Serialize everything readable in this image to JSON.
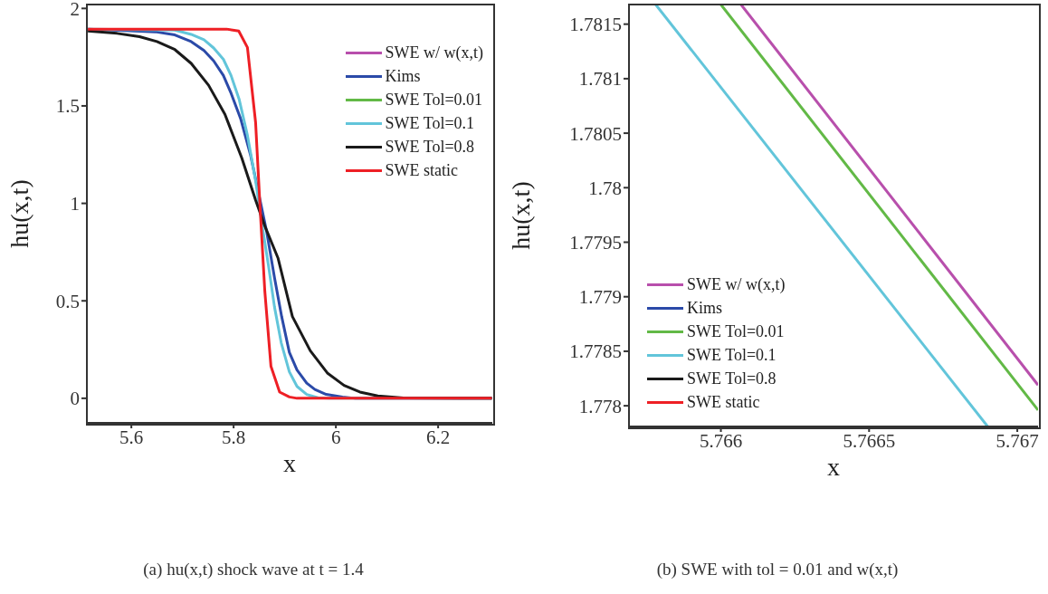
{
  "chart_data": [
    {
      "type": "line",
      "xlabel": "x",
      "ylabel": "hu(x,t)",
      "xlim": [
        5.513,
        6.306
      ],
      "ylim": [
        -0.126,
        2.02
      ],
      "xticks": [
        5.6,
        5.8,
        6,
        6.2
      ],
      "yticks": [
        0,
        0.5,
        1,
        1.5,
        2
      ],
      "grid": false,
      "legend": "top right",
      "marker": "none",
      "line_style": "solid",
      "annotations": [
        "(a) hu(x,t) shock wave at t = 1.4"
      ],
      "series": [
        {
          "name": "SWE w/ w(x,t)",
          "color": "#b84fac"
        },
        {
          "name": "Kims",
          "color": "#2b4aa8",
          "x": [
            5.515,
            5.647,
            5.685,
            5.717,
            5.742,
            5.761,
            5.78,
            5.795,
            5.814,
            5.833,
            5.849,
            5.865,
            5.88,
            5.894,
            5.909,
            5.924,
            5.943,
            5.959,
            5.981,
            6.013,
            6.038,
            6.305
          ],
          "values": [
            1.894,
            1.88,
            1.864,
            1.83,
            1.784,
            1.731,
            1.656,
            1.565,
            1.432,
            1.249,
            1.05,
            0.85,
            0.618,
            0.419,
            0.236,
            0.145,
            0.078,
            0.045,
            0.02,
            0.007,
            0,
            0
          ]
        },
        {
          "name": "SWE Tol=0.01",
          "color": "#62b946"
        },
        {
          "name": "SWE Tol=0.1",
          "color": "#62c5da",
          "x": [
            5.515,
            5.685,
            5.717,
            5.742,
            5.761,
            5.78,
            5.795,
            5.811,
            5.827,
            5.843,
            5.855,
            5.868,
            5.88,
            5.893,
            5.909,
            5.924,
            5.943,
            5.965,
            5.987,
            6.305
          ],
          "values": [
            1.894,
            1.889,
            1.867,
            1.839,
            1.797,
            1.739,
            1.656,
            1.532,
            1.349,
            1.116,
            0.9,
            0.684,
            0.468,
            0.286,
            0.136,
            0.061,
            0.02,
            0.003,
            0,
            0
          ]
        },
        {
          "name": "SWE Tol=0.8",
          "color": "#1a1a1a",
          "x": [
            5.515,
            5.572,
            5.616,
            5.65,
            5.685,
            5.717,
            5.751,
            5.783,
            5.816,
            5.843,
            5.861,
            5.887,
            5.915,
            5.95,
            5.984,
            6.016,
            6.047,
            6.082,
            6.132,
            6.305
          ],
          "values": [
            1.884,
            1.872,
            1.855,
            1.83,
            1.789,
            1.718,
            1.606,
            1.457,
            1.233,
            1.017,
            0.884,
            0.718,
            0.419,
            0.244,
            0.128,
            0.066,
            0.032,
            0.012,
            0.002,
            0
          ]
        },
        {
          "name": "SWE static",
          "color": "#ee1f25",
          "x": [
            5.515,
            5.786,
            5.81,
            5.827,
            5.843,
            5.852,
            5.861,
            5.873,
            5.89,
            5.909,
            5.924,
            6.305
          ],
          "values": [
            1.894,
            1.894,
            1.884,
            1.8,
            1.415,
            0.967,
            0.55,
            0.164,
            0.032,
            0.007,
            0,
            0
          ]
        }
      ]
    },
    {
      "type": "line",
      "xlabel": "x",
      "ylabel": "hu(x,t)",
      "xlim": [
        5.76569,
        5.76707
      ],
      "ylim": [
        1.77781,
        1.78168
      ],
      "xticks": [
        5.766,
        5.7665,
        5.767
      ],
      "yticks": [
        1.778,
        1.7785,
        1.779,
        1.7795,
        1.78,
        1.7805,
        1.781,
        1.7815
      ],
      "grid": false,
      "legend": "bottom left",
      "marker": "none",
      "line_style": "solid",
      "annotations": [
        "(b) SWE with tol = 0.01 and w(x,t)"
      ],
      "series": [
        {
          "name": "SWE w/ w(x,t)",
          "color": "#b84fac",
          "x": [
            5.766068,
            5.76707
          ],
          "values": [
            1.78168,
            1.77819
          ]
        },
        {
          "name": "Kims",
          "color": "#2b4aa8"
        },
        {
          "name": "SWE Tol=0.01",
          "color": "#62b946",
          "x": [
            5.766,
            5.76707
          ],
          "values": [
            1.78168,
            1.77796
          ]
        },
        {
          "name": "SWE Tol=0.1",
          "color": "#62c5da",
          "x": [
            5.76578,
            5.7669
          ],
          "values": [
            1.78168,
            1.77781
          ]
        },
        {
          "name": "SWE Tol=0.8",
          "color": "#1a1a1a"
        },
        {
          "name": "SWE static",
          "color": "#ee1f25"
        }
      ]
    }
  ]
}
